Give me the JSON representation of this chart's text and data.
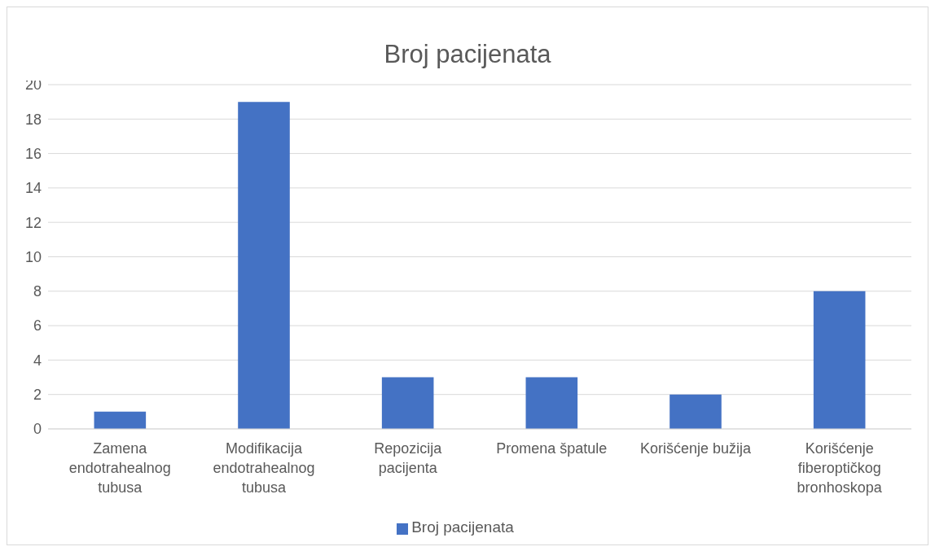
{
  "chart_data": {
    "type": "bar",
    "title": "Broj pacijenata",
    "categories": [
      "Zamena endotrahealnog tubusa",
      "Modifikacija endotrahealnog tubusa",
      "Repozicija pacijenta",
      "Promena špatule",
      "Korišćenje bužija",
      "Korišćenje fiberoptičkog bronhoskopa"
    ],
    "series": [
      {
        "name": "Broj pacijenata",
        "color": "#4472c4",
        "values": [
          1,
          19,
          3,
          3,
          2,
          8
        ]
      }
    ],
    "ylim": [
      0,
      20
    ],
    "yticks": [
      0,
      2,
      4,
      6,
      8,
      10,
      12,
      14,
      16,
      18,
      20
    ],
    "grid": "y",
    "legend": "bottom"
  }
}
